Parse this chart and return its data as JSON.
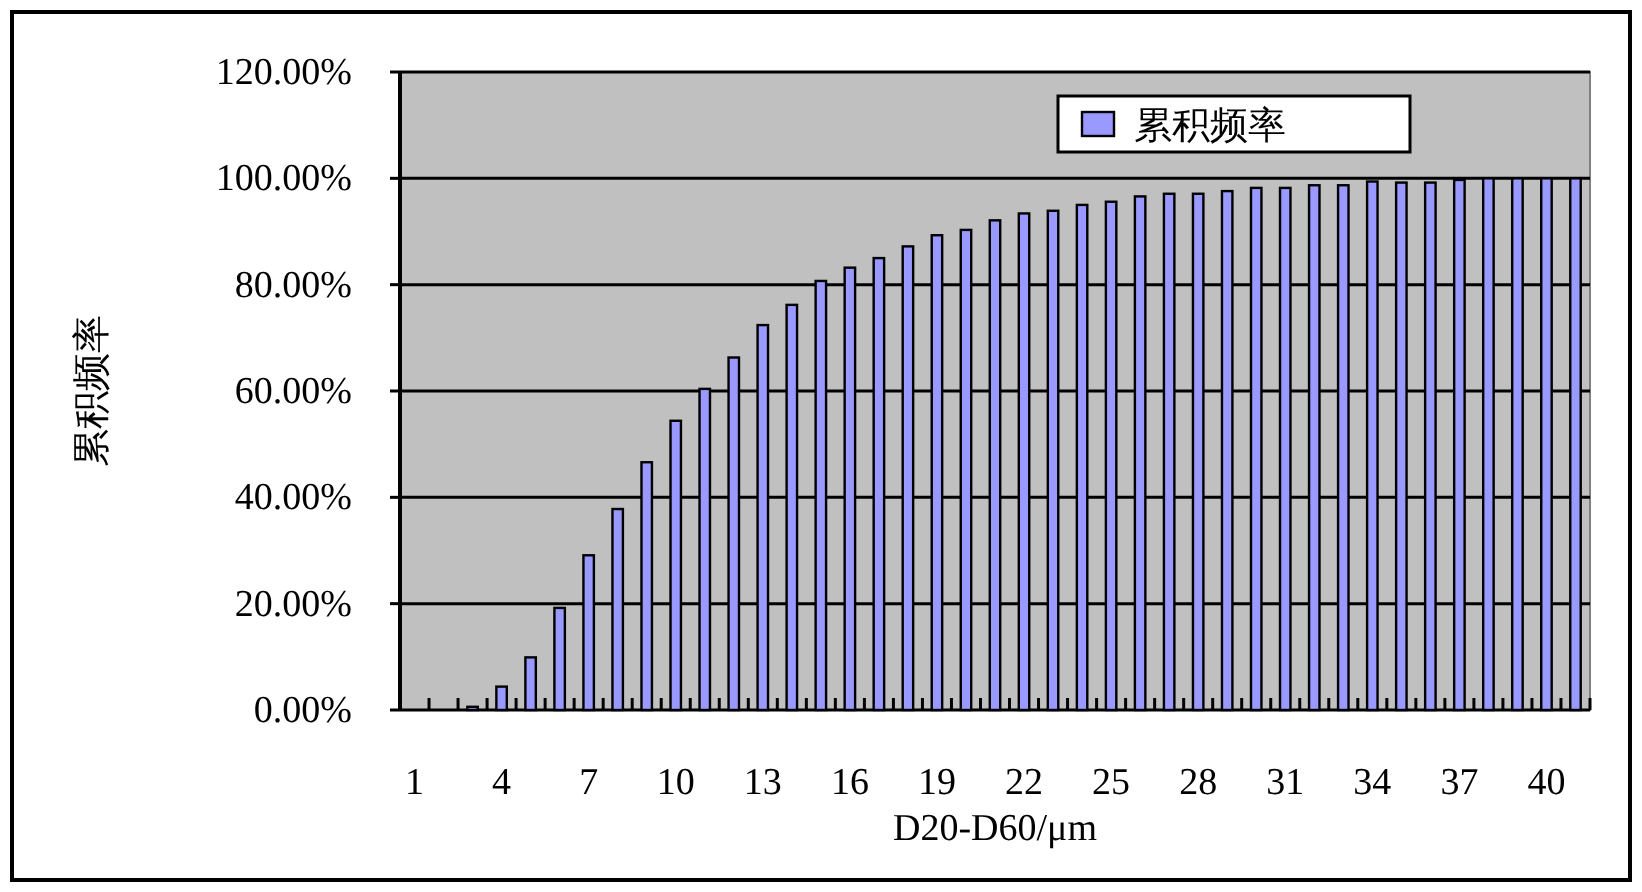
{
  "chart_data": {
    "type": "bar",
    "xlabel": "D20-D60/μm",
    "ylabel": "累积频率",
    "categories": [
      "1",
      null,
      null,
      "4",
      null,
      null,
      "7",
      null,
      null,
      "10",
      null,
      null,
      "13",
      null,
      null,
      "16",
      null,
      null,
      "19",
      null,
      null,
      "22",
      null,
      null,
      "25",
      null,
      null,
      "28",
      null,
      null,
      "31",
      null,
      null,
      "34",
      null,
      null,
      "37",
      null,
      null,
      "40",
      null
    ],
    "series": [
      {
        "name": "累积频率",
        "color": "#9999ff",
        "values": [
          0,
          0,
          0.6,
          4.4,
          9.9,
          19.2,
          29.1,
          37.8,
          46.6,
          54.4,
          60.4,
          66.3,
          72.4,
          76.2,
          80.7,
          83.2,
          85.0,
          87.2,
          89.3,
          90.3,
          92.1,
          93.4,
          93.9,
          95.0,
          95.6,
          96.6,
          97.1,
          97.1,
          97.6,
          98.2,
          98.2,
          98.7,
          98.7,
          99.4,
          99.2,
          99.2,
          99.7,
          100,
          100,
          100,
          100
        ]
      }
    ],
    "ylim": [
      0,
      120
    ],
    "yticks": [
      {
        "value": 0,
        "label": "0.00%"
      },
      {
        "value": 20,
        "label": "20.00%"
      },
      {
        "value": 40,
        "label": "40.00%"
      },
      {
        "value": 60,
        "label": "60.00%"
      },
      {
        "value": 80,
        "label": "80.00%"
      },
      {
        "value": 100,
        "label": "100.00%"
      },
      {
        "value": 120,
        "label": "120.00%"
      }
    ],
    "grid": "y",
    "legend": "top right"
  }
}
